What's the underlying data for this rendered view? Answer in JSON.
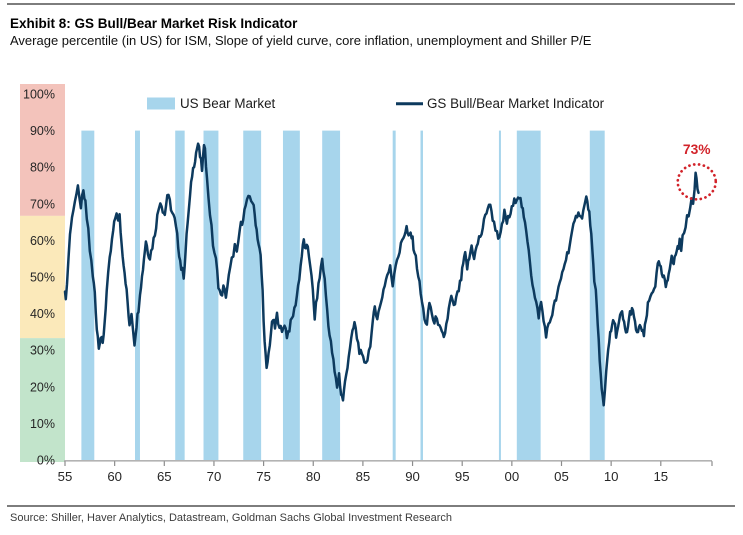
{
  "page": {
    "title": "Exhibit 8: GS Bull/Bear Market Risk Indicator",
    "subtitle": "Average percentile (in US) for ISM, Slope of yield curve, core inflation, unemployment and Shiller P/E",
    "source": "Source: Shiller, Haver Analytics, Datastream, Goldman Sachs Global Investment Research"
  },
  "chart_data": {
    "type": "line",
    "title": "GS Bull/Bear Market Risk Indicator",
    "xlabel": "",
    "ylabel": "",
    "grid": false,
    "legend_position": "top",
    "colors": {
      "bear_band": "#a7d5ec",
      "line": "#0d3a5e",
      "annotation_red": "#d2232a",
      "axis_line": "#b3b3b3",
      "tick_mark": "#8c8c8c",
      "tick_label": "#262626",
      "legend_text": "#1c1c1c"
    },
    "x_axis": {
      "range": [
        1955,
        2020.2
      ],
      "ticks": [
        {
          "label": "55",
          "year": 1955
        },
        {
          "label": "60",
          "year": 1960
        },
        {
          "label": "65",
          "year": 1965
        },
        {
          "label": "70",
          "year": 1970
        },
        {
          "label": "75",
          "year": 1975
        },
        {
          "label": "80",
          "year": 1980
        },
        {
          "label": "85",
          "year": 1985
        },
        {
          "label": "90",
          "year": 1990
        },
        {
          "label": "95",
          "year": 1995
        },
        {
          "label": "00",
          "year": 2000
        },
        {
          "label": "05",
          "year": 2005
        },
        {
          "label": "10",
          "year": 2010
        },
        {
          "label": "15",
          "year": 2015
        }
      ]
    },
    "y_axis": {
      "range": [
        0,
        100
      ],
      "unit": "%",
      "ticks": [
        {
          "label": "0%",
          "value": 0
        },
        {
          "label": "10%",
          "value": 10
        },
        {
          "label": "20%",
          "value": 20
        },
        {
          "label": "30%",
          "value": 30
        },
        {
          "label": "40%",
          "value": 40
        },
        {
          "label": "50%",
          "value": 50
        },
        {
          "label": "60%",
          "value": 60
        },
        {
          "label": "70%",
          "value": 70
        },
        {
          "label": "80%",
          "value": 80
        },
        {
          "label": "90%",
          "value": 90
        },
        {
          "label": "100%",
          "value": 100
        }
      ]
    },
    "risk_zones": [
      {
        "label": "high",
        "from": 66.7,
        "to": 100,
        "color": "#f3c3bb"
      },
      {
        "label": "mid",
        "from": 33.3,
        "to": 66.7,
        "color": "#fbe9ba"
      },
      {
        "label": "low",
        "from": 0,
        "to": 33.3,
        "color": "#c2e4cb"
      }
    ],
    "legend": [
      {
        "label": "US Bear Market",
        "type": "area",
        "color": "#a7d5ec"
      },
      {
        "label": "GS Bull/Bear Market Indicator",
        "type": "line",
        "color": "#0d3a5e"
      }
    ],
    "bear_markets": [
      [
        1956.65,
        1957.95
      ],
      [
        1962.05,
        1962.55
      ],
      [
        1966.1,
        1967.05
      ],
      [
        1968.95,
        1970.45
      ],
      [
        1972.95,
        1974.75
      ],
      [
        1976.95,
        1978.65
      ],
      [
        1980.9,
        1982.7
      ],
      [
        1988.0,
        1988.3
      ],
      [
        1990.8,
        1991.05
      ],
      [
        1998.7,
        1998.9
      ],
      [
        2000.5,
        2002.9
      ],
      [
        2007.85,
        2009.35
      ]
    ],
    "bear_band_top_value": 90,
    "series": {
      "name": "GS Bull/Bear Market Indicator",
      "points": [
        [
          1955.0,
          46
        ],
        [
          1955.08,
          43
        ],
        [
          1955.2,
          49
        ],
        [
          1955.35,
          55
        ],
        [
          1955.5,
          62
        ],
        [
          1955.7,
          66
        ],
        [
          1955.85,
          69
        ],
        [
          1956.0,
          71
        ],
        [
          1956.15,
          72.5
        ],
        [
          1956.3,
          74
        ],
        [
          1956.45,
          71
        ],
        [
          1956.6,
          69.5
        ],
        [
          1956.85,
          73
        ],
        [
          1957.05,
          70
        ],
        [
          1957.2,
          66
        ],
        [
          1957.35,
          63
        ],
        [
          1957.5,
          57.5
        ],
        [
          1957.65,
          54
        ],
        [
          1957.8,
          50
        ],
        [
          1958.0,
          46
        ],
        [
          1958.2,
          36
        ],
        [
          1958.4,
          31.5
        ],
        [
          1958.6,
          33.5
        ],
        [
          1958.8,
          31.5
        ],
        [
          1959.0,
          38
        ],
        [
          1959.2,
          46
        ],
        [
          1959.5,
          54.5
        ],
        [
          1959.85,
          62.5
        ],
        [
          1960.05,
          66
        ],
        [
          1960.2,
          68
        ],
        [
          1960.35,
          65
        ],
        [
          1960.5,
          66.5
        ],
        [
          1960.7,
          59
        ],
        [
          1960.9,
          54
        ],
        [
          1961.1,
          49
        ],
        [
          1961.3,
          43
        ],
        [
          1961.5,
          36
        ],
        [
          1961.7,
          40.5
        ],
        [
          1961.85,
          36
        ],
        [
          1962.0,
          32
        ],
        [
          1962.2,
          37
        ],
        [
          1962.4,
          41.5
        ],
        [
          1962.55,
          46
        ],
        [
          1962.75,
          50
        ],
        [
          1962.95,
          55
        ],
        [
          1963.15,
          60
        ],
        [
          1963.35,
          57
        ],
        [
          1963.55,
          55.5
        ],
        [
          1963.8,
          58.5
        ],
        [
          1964.05,
          62
        ],
        [
          1964.3,
          66.5
        ],
        [
          1964.6,
          71
        ],
        [
          1964.85,
          68.5
        ],
        [
          1965.05,
          67
        ],
        [
          1965.3,
          72.5
        ],
        [
          1965.55,
          70.5
        ],
        [
          1965.8,
          67.5
        ],
        [
          1966.05,
          65.5
        ],
        [
          1966.3,
          61
        ],
        [
          1966.5,
          56.5
        ],
        [
          1966.7,
          52.5
        ],
        [
          1966.95,
          50.5
        ],
        [
          1967.15,
          57
        ],
        [
          1967.35,
          65
        ],
        [
          1967.6,
          72
        ],
        [
          1967.8,
          78
        ],
        [
          1968.0,
          81
        ],
        [
          1968.2,
          84
        ],
        [
          1968.4,
          86.5
        ],
        [
          1968.6,
          83
        ],
        [
          1968.8,
          79.5
        ],
        [
          1969.0,
          85
        ],
        [
          1969.1,
          86
        ],
        [
          1969.3,
          76.5
        ],
        [
          1969.6,
          67.5
        ],
        [
          1969.9,
          59
        ],
        [
          1970.2,
          54.5
        ],
        [
          1970.45,
          48
        ],
        [
          1970.7,
          44.5
        ],
        [
          1970.95,
          47
        ],
        [
          1971.2,
          45
        ],
        [
          1971.5,
          50
        ],
        [
          1971.8,
          54.5
        ],
        [
          1972.1,
          58.5
        ],
        [
          1972.3,
          56
        ],
        [
          1972.6,
          63
        ],
        [
          1972.95,
          66.5
        ],
        [
          1973.2,
          69.5
        ],
        [
          1973.6,
          72
        ],
        [
          1973.9,
          70.5
        ],
        [
          1974.1,
          67
        ],
        [
          1974.3,
          63
        ],
        [
          1974.5,
          59
        ],
        [
          1974.7,
          55.5
        ],
        [
          1974.9,
          46
        ],
        [
          1975.1,
          32
        ],
        [
          1975.3,
          24.5
        ],
        [
          1975.5,
          29
        ],
        [
          1975.75,
          35
        ],
        [
          1975.95,
          38.5
        ],
        [
          1976.15,
          36
        ],
        [
          1976.35,
          39.5
        ],
        [
          1976.6,
          37
        ],
        [
          1976.85,
          34.5
        ],
        [
          1977.1,
          37.5
        ],
        [
          1977.35,
          34
        ],
        [
          1977.6,
          36
        ],
        [
          1977.85,
          38.5
        ],
        [
          1978.1,
          41
        ],
        [
          1978.35,
          45
        ],
        [
          1978.6,
          50
        ],
        [
          1978.85,
          56
        ],
        [
          1979.05,
          60
        ],
        [
          1979.25,
          57
        ],
        [
          1979.45,
          58.5
        ],
        [
          1979.7,
          53.5
        ],
        [
          1979.95,
          46
        ],
        [
          1980.15,
          39
        ],
        [
          1980.4,
          45
        ],
        [
          1980.65,
          50
        ],
        [
          1980.9,
          55
        ],
        [
          1981.15,
          49
        ],
        [
          1981.4,
          41
        ],
        [
          1981.65,
          34
        ],
        [
          1981.9,
          29.5
        ],
        [
          1982.15,
          24
        ],
        [
          1982.4,
          20
        ],
        [
          1982.6,
          23.5
        ],
        [
          1982.8,
          18
        ],
        [
          1983.0,
          16.5
        ],
        [
          1983.2,
          21
        ],
        [
          1983.45,
          26
        ],
        [
          1983.7,
          31
        ],
        [
          1983.95,
          34.5
        ],
        [
          1984.15,
          37.5
        ],
        [
          1984.4,
          33.5
        ],
        [
          1984.65,
          30
        ],
        [
          1984.9,
          28
        ],
        [
          1985.15,
          27
        ],
        [
          1985.45,
          27.5
        ],
        [
          1985.75,
          32
        ],
        [
          1986.0,
          37
        ],
        [
          1986.2,
          42
        ],
        [
          1986.45,
          39
        ],
        [
          1986.7,
          41.5
        ],
        [
          1986.95,
          45
        ],
        [
          1987.2,
          48
        ],
        [
          1987.45,
          50.5
        ],
        [
          1987.75,
          52.5
        ],
        [
          1988.0,
          48
        ],
        [
          1988.3,
          54
        ],
        [
          1988.7,
          57
        ],
        [
          1988.95,
          60
        ],
        [
          1989.2,
          62
        ],
        [
          1989.4,
          63.5
        ],
        [
          1989.6,
          60.5
        ],
        [
          1989.8,
          62
        ],
        [
          1990.0,
          60
        ],
        [
          1990.2,
          57
        ],
        [
          1990.45,
          53
        ],
        [
          1990.7,
          48
        ],
        [
          1990.95,
          43
        ],
        [
          1991.2,
          39
        ],
        [
          1991.45,
          36.5
        ],
        [
          1991.7,
          43
        ],
        [
          1991.95,
          40
        ],
        [
          1992.2,
          37
        ],
        [
          1992.45,
          39.5
        ],
        [
          1992.7,
          36
        ],
        [
          1992.95,
          34.5
        ],
        [
          1993.15,
          33
        ],
        [
          1993.4,
          37
        ],
        [
          1993.65,
          41
        ],
        [
          1993.9,
          44.5
        ],
        [
          1994.15,
          41.5
        ],
        [
          1994.4,
          44
        ],
        [
          1994.65,
          46.5
        ],
        [
          1994.9,
          49.5
        ],
        [
          1995.1,
          53.5
        ],
        [
          1995.3,
          56
        ],
        [
          1995.5,
          52.5
        ],
        [
          1995.7,
          55
        ],
        [
          1995.95,
          58.5
        ],
        [
          1996.2,
          55.5
        ],
        [
          1996.45,
          58
        ],
        [
          1996.7,
          60.5
        ],
        [
          1996.95,
          62
        ],
        [
          1997.2,
          65
        ],
        [
          1997.45,
          68
        ],
        [
          1997.7,
          70
        ],
        [
          1997.95,
          68
        ],
        [
          1998.2,
          64.5
        ],
        [
          1998.5,
          62.5
        ],
        [
          1998.75,
          60
        ],
        [
          1999.0,
          63.5
        ],
        [
          1999.25,
          67.5
        ],
        [
          1999.5,
          65
        ],
        [
          1999.75,
          66.5
        ],
        [
          2000.0,
          68.5
        ],
        [
          2000.25,
          70.5
        ],
        [
          2000.5,
          72
        ],
        [
          2000.75,
          72.3
        ],
        [
          2001.0,
          69.5
        ],
        [
          2001.2,
          66
        ],
        [
          2001.45,
          62.5
        ],
        [
          2001.7,
          58
        ],
        [
          2001.95,
          51
        ],
        [
          2002.2,
          46
        ],
        [
          2002.45,
          42.5
        ],
        [
          2002.7,
          39.5
        ],
        [
          2002.95,
          43
        ],
        [
          2003.2,
          38
        ],
        [
          2003.45,
          34.5
        ],
        [
          2003.7,
          36.5
        ],
        [
          2003.95,
          39
        ],
        [
          2004.2,
          41.5
        ],
        [
          2004.45,
          44
        ],
        [
          2004.7,
          46.5
        ],
        [
          2004.95,
          49.5
        ],
        [
          2005.2,
          52.5
        ],
        [
          2005.45,
          55
        ],
        [
          2005.7,
          57.5
        ],
        [
          2005.95,
          60.5
        ],
        [
          2006.2,
          63.5
        ],
        [
          2006.45,
          66
        ],
        [
          2006.7,
          68.5
        ],
        [
          2006.95,
          66
        ],
        [
          2007.2,
          68
        ],
        [
          2007.5,
          71.5
        ],
        [
          2007.7,
          69
        ],
        [
          2007.9,
          65
        ],
        [
          2008.1,
          57
        ],
        [
          2008.3,
          48
        ],
        [
          2008.45,
          46
        ],
        [
          2008.65,
          38
        ],
        [
          2008.85,
          27
        ],
        [
          2009.05,
          19
        ],
        [
          2009.25,
          15
        ],
        [
          2009.5,
          24
        ],
        [
          2009.7,
          31
        ],
        [
          2009.9,
          34
        ],
        [
          2010.1,
          36.5
        ],
        [
          2010.3,
          38
        ],
        [
          2010.5,
          34.5
        ],
        [
          2010.7,
          36
        ],
        [
          2010.9,
          39
        ],
        [
          2011.1,
          40
        ],
        [
          2011.3,
          37
        ],
        [
          2011.5,
          34.5
        ],
        [
          2011.7,
          36.5
        ],
        [
          2011.9,
          40
        ],
        [
          2012.1,
          41.5
        ],
        [
          2012.3,
          38.5
        ],
        [
          2012.5,
          36
        ],
        [
          2012.7,
          34
        ],
        [
          2012.9,
          37.5
        ],
        [
          2013.1,
          35
        ],
        [
          2013.3,
          34
        ],
        [
          2013.5,
          38
        ],
        [
          2013.7,
          42
        ],
        [
          2013.95,
          44.5
        ],
        [
          2014.2,
          46.5
        ],
        [
          2014.45,
          48
        ],
        [
          2014.7,
          53
        ],
        [
          2014.9,
          53.5
        ],
        [
          2015.1,
          50.5
        ],
        [
          2015.3,
          49.5
        ],
        [
          2015.5,
          47.5
        ],
        [
          2015.7,
          50
        ],
        [
          2015.9,
          53
        ],
        [
          2016.1,
          55
        ],
        [
          2016.3,
          53.5
        ],
        [
          2016.5,
          56.5
        ],
        [
          2016.7,
          58
        ],
        [
          2016.9,
          59.5
        ],
        [
          2017.05,
          57.5
        ],
        [
          2017.2,
          60.5
        ],
        [
          2017.35,
          63
        ],
        [
          2017.5,
          64.5
        ],
        [
          2017.65,
          66.5
        ],
        [
          2017.8,
          65.5
        ],
        [
          2017.95,
          69
        ],
        [
          2018.1,
          71.5
        ],
        [
          2018.25,
          70
        ],
        [
          2018.4,
          74
        ],
        [
          2018.5,
          78.5
        ],
        [
          2018.6,
          77
        ],
        [
          2018.7,
          74
        ],
        [
          2018.8,
          73
        ]
      ]
    },
    "annotation": {
      "label": "73%",
      "value": 73,
      "year": 2018.8,
      "circle_center": {
        "year": 2018.62,
        "value": 76
      }
    }
  }
}
